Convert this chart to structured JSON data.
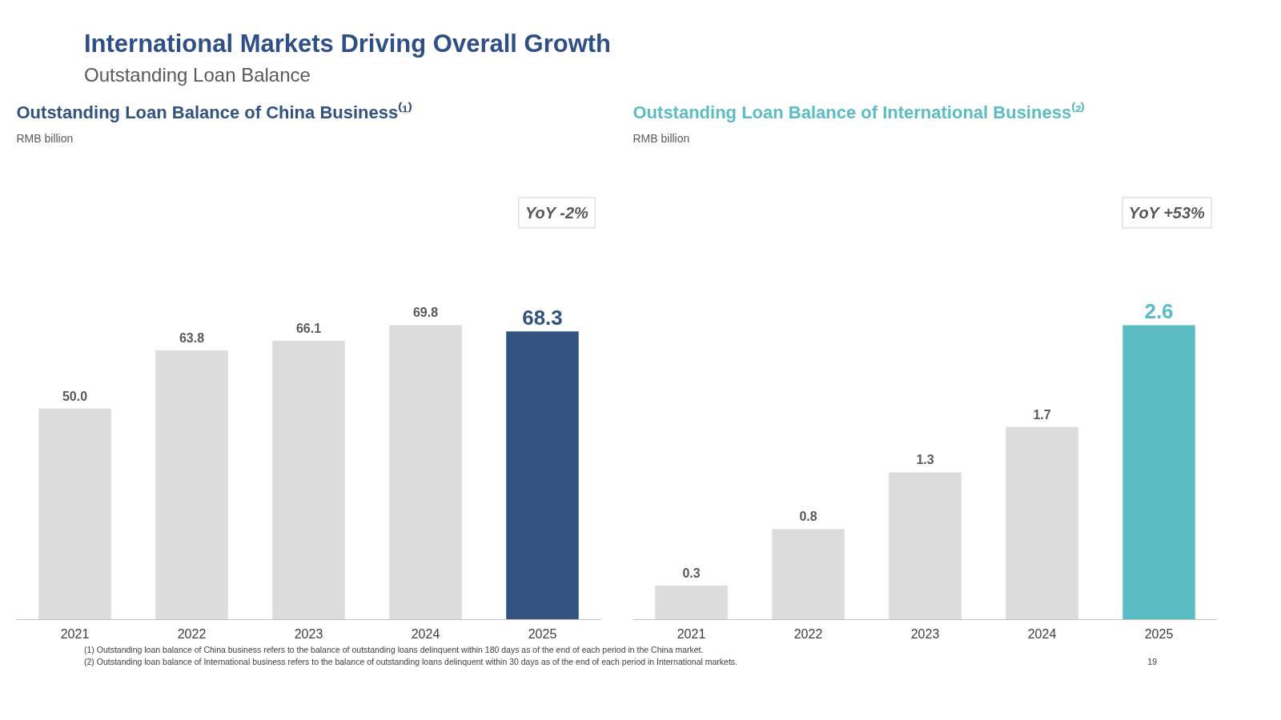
{
  "chart_data": [
    {
      "type": "bar",
      "title": "Outstanding Loan Balance of China Business⁽¹⁾",
      "subtitle": "RMB billion",
      "categories": [
        "2021",
        "2022",
        "2023",
        "2024",
        "2025"
      ],
      "values": [
        50.0,
        63.8,
        66.1,
        69.8,
        68.3
      ],
      "colors": [
        "#dcdcdc",
        "#dcdcdc",
        "#dcdcdc",
        "#dcdcdc",
        "#32527f"
      ],
      "value_labels": [
        "50.0",
        "63.8",
        "66.1",
        "69.8",
        "68.3"
      ],
      "grid": false,
      "tick_labels": "x",
      "annotations": [
        "International Markets Driving Overall Growth",
        "Outstanding Loan Balance",
        "YoY -2%",
        "(1) Outstanding loan balance of China business refers to the balance of outstanding loans delinquent within 180 days as of the end of each period in the China market.",
        "(2) Outstanding loan balance of International business refers to the balance of outstanding loans delinquent within 30 days as of the end of each period in International markets.",
        "19"
      ]
    },
    {
      "type": "bar",
      "title": "Outstanding Loan Balance of International Business⁽²⁾",
      "subtitle": "RMB billion",
      "categories": [
        "2021",
        "2022",
        "2023",
        "2024",
        "2025"
      ],
      "values": [
        0.3,
        0.8,
        1.3,
        1.7,
        2.6
      ],
      "colors": [
        "#dcdcdc",
        "#dcdcdc",
        "#dcdcdc",
        "#dcdcdc",
        "#5bbcc4"
      ],
      "data_labels": true,
      "grid": false,
      "tick_labels": "x",
      "annotations": [
        "YoY +53%"
      ]
    }
  ]
}
